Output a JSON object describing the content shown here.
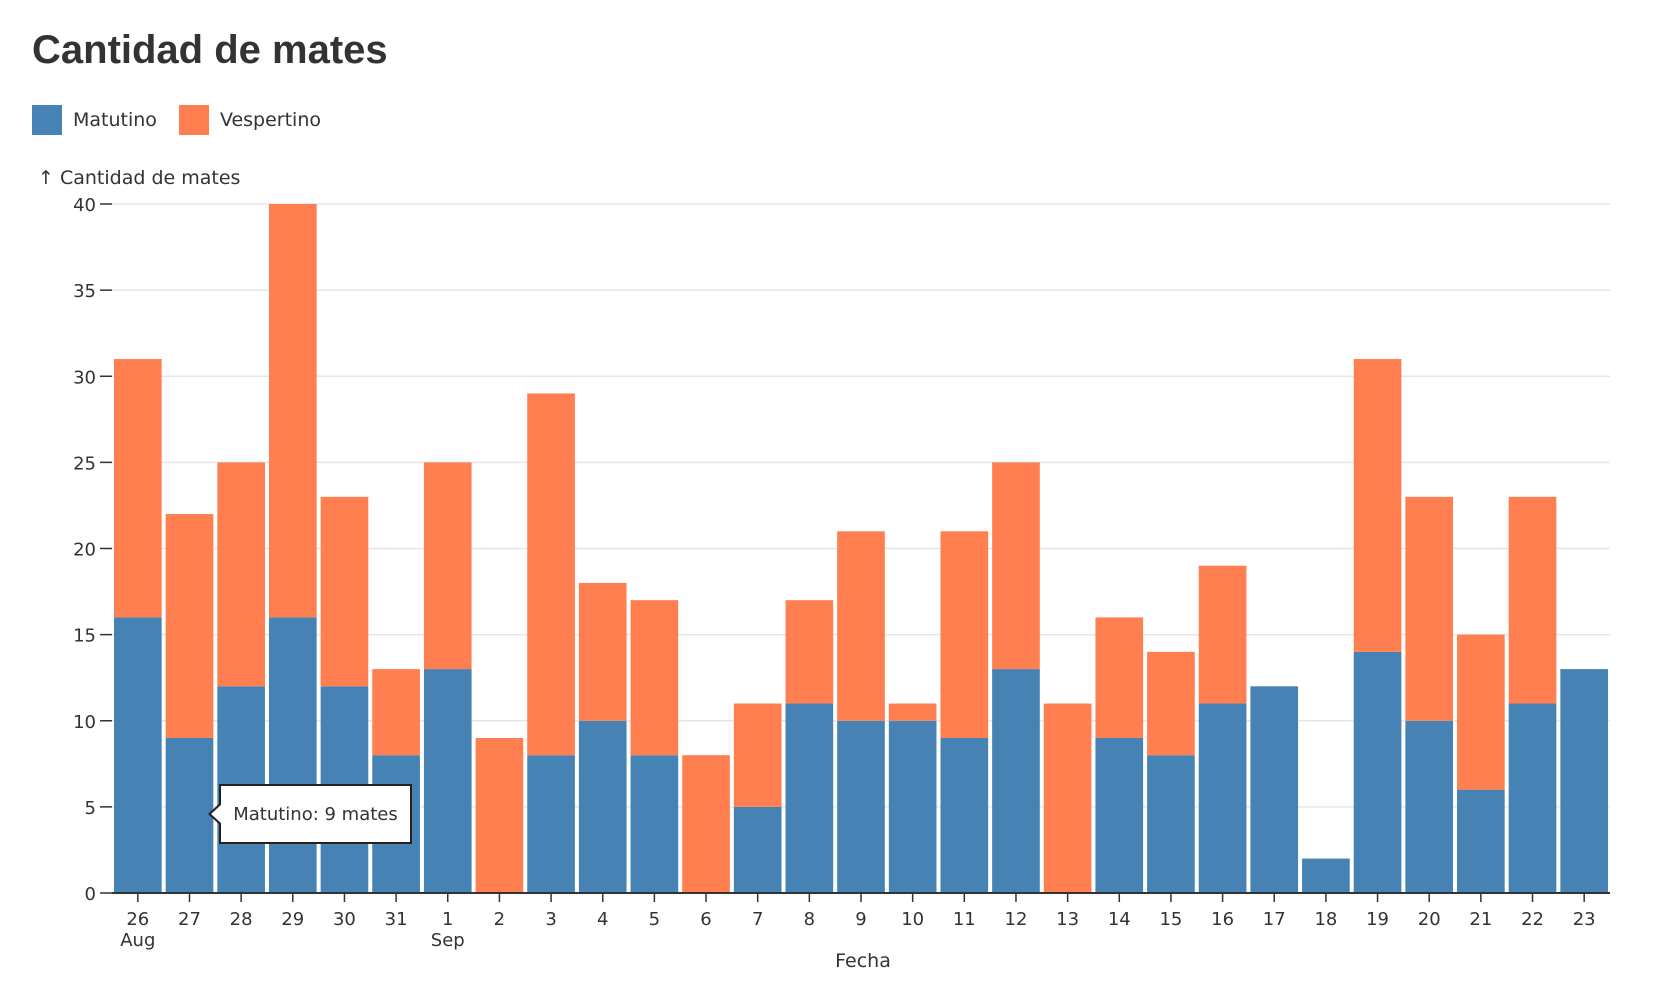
{
  "page_title": "Cantidad de mates",
  "legend": [
    {
      "label": "Matutino",
      "color": "#4682b4"
    },
    {
      "label": "Vespertino",
      "color": "#ff7f50"
    }
  ],
  "tooltip": {
    "text": "Matutino: 9 mates"
  },
  "chart_data": {
    "type": "bar",
    "stacked": true,
    "title": "Cantidad de mates",
    "ylabel": "↑ Cantidad de mates",
    "xlabel": "Fecha",
    "ylim": [
      0,
      40
    ],
    "yticks": [
      0,
      5,
      10,
      15,
      20,
      25,
      30,
      35,
      40
    ],
    "grid": "horizontal",
    "legend_position": "top-left",
    "categories": [
      "26",
      "27",
      "28",
      "29",
      "30",
      "31",
      "1",
      "2",
      "3",
      "4",
      "5",
      "6",
      "7",
      "8",
      "9",
      "10",
      "11",
      "12",
      "13",
      "14",
      "15",
      "16",
      "17",
      "18",
      "19",
      "20",
      "21",
      "22",
      "23"
    ],
    "month_labels": [
      {
        "category_index": 0,
        "label": "Aug"
      },
      {
        "category_index": 6,
        "label": "Sep"
      }
    ],
    "series": [
      {
        "name": "Matutino",
        "color": "#4682b4",
        "values": [
          16,
          9,
          12,
          16,
          12,
          8,
          13,
          0,
          8,
          10,
          8,
          0,
          5,
          11,
          10,
          10,
          9,
          13,
          0,
          9,
          8,
          11,
          12,
          2,
          14,
          10,
          6,
          11,
          13
        ]
      },
      {
        "name": "Vespertino",
        "color": "#ff7f50",
        "values": [
          15,
          13,
          13,
          24,
          11,
          5,
          12,
          9,
          21,
          8,
          9,
          8,
          6,
          6,
          11,
          1,
          12,
          12,
          11,
          7,
          6,
          8,
          0,
          0,
          17,
          13,
          9,
          12,
          0
        ]
      }
    ]
  }
}
